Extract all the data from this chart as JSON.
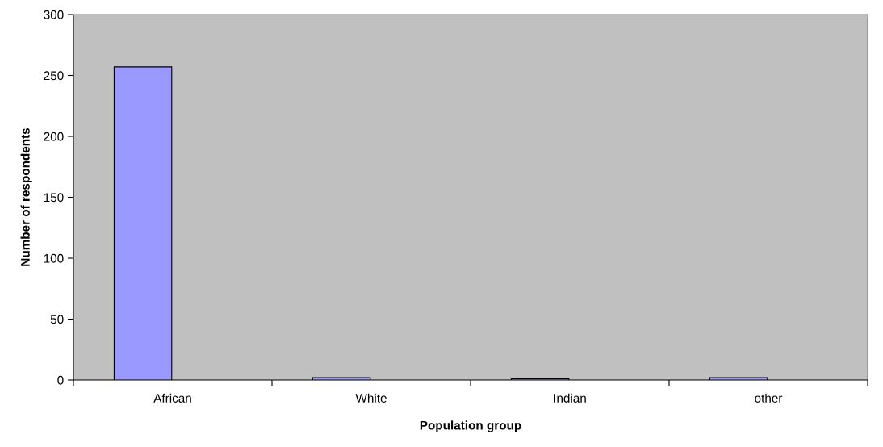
{
  "chart_data": {
    "type": "bar",
    "xlabel": "Population group",
    "ylabel": "Number of respondents",
    "categories": [
      "African",
      "White",
      "Indian",
      "other"
    ],
    "values": [
      257,
      2,
      1,
      2
    ],
    "color": "#9999ff",
    "ylim": [
      0,
      300
    ],
    "yticks": [
      0,
      50,
      100,
      150,
      200,
      250,
      300
    ],
    "grid": false,
    "legend": false
  }
}
